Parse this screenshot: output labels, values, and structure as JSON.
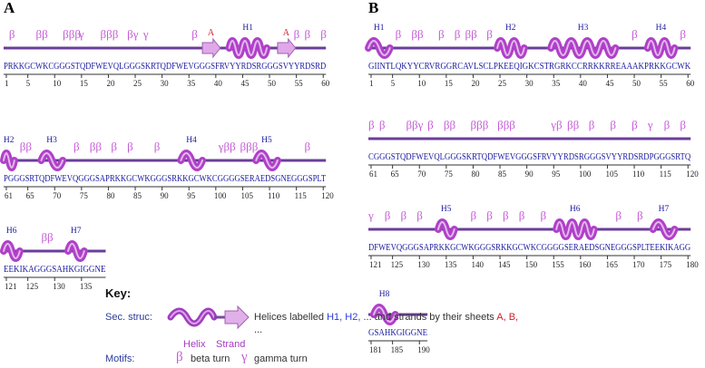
{
  "panels": [
    {
      "label": "A",
      "rows": [
        {
          "seq": "PRKKGCWKCGGGSTQDFWEVQLGGGSKRTQDFWEVGGGSFRVYYRDSRGGGSVYYRDSRD",
          "start": 1,
          "ticks": [
            "1",
            "5",
            "10",
            "15",
            "20",
            "25",
            "30",
            "35",
            "40",
            "45",
            "50",
            "55",
            "60"
          ],
          "helices": [
            {
              "label": "H1",
              "from": 43,
              "to": 49
            }
          ],
          "strands": [
            {
              "label": "A",
              "from": 38,
              "to": 40
            },
            {
              "label": "A",
              "from": 52,
              "to": 54
            }
          ],
          "motifs": [
            {
              "t": "β",
              "pos": 2
            },
            {
              "t": "ββ",
              "pos": 7
            },
            {
              "t": "βββ",
              "pos": 12
            },
            {
              "t": "γ",
              "pos": 15
            },
            {
              "t": "βββ",
              "pos": 19
            },
            {
              "t": "βγ",
              "pos": 24
            },
            {
              "t": "γ",
              "pos": 27
            },
            {
              "t": "β",
              "pos": 36
            },
            {
              "t": "β",
              "pos": 55
            },
            {
              "t": "β",
              "pos": 57
            },
            {
              "t": "β",
              "pos": 60
            }
          ]
        },
        {
          "seq": "PGGGSRTQDFWEVQGGGSAPRKKGCWKGGGSRKKGCWKCGGGGSERAEDSGNEGGGSPLT",
          "start": 61,
          "ticks": [
            "61",
            "65",
            "70",
            "75",
            "80",
            "85",
            "90",
            "95",
            "100",
            "105",
            "110",
            "115",
            "120"
          ],
          "helices": [
            {
              "label": "H2",
              "from": 61,
              "to": 62
            },
            {
              "label": "H3",
              "from": 68,
              "to": 71
            },
            {
              "label": "H4",
              "from": 94,
              "to": 97
            },
            {
              "label": "H5",
              "from": 108,
              "to": 111
            }
          ],
          "strands": [],
          "motifs": [
            {
              "t": "ββ",
              "pos": 64
            },
            {
              "t": "β",
              "pos": 74
            },
            {
              "t": "ββ",
              "pos": 77
            },
            {
              "t": "β",
              "pos": 81
            },
            {
              "t": "β",
              "pos": 84
            },
            {
              "t": "β",
              "pos": 89
            },
            {
              "t": "γββ",
              "pos": 101
            },
            {
              "t": "βββ",
              "pos": 105
            },
            {
              "t": "β",
              "pos": 117
            }
          ]
        },
        {
          "seq": "EEKIKAGGGSAHKGIGGNE",
          "start": 121,
          "ticks": [
            "121",
            "125",
            "130",
            "135"
          ],
          "helices": [
            {
              "label": "H6",
              "from": 121,
              "to": 123
            },
            {
              "label": "H7",
              "from": 133,
              "to": 135
            }
          ],
          "strands": [],
          "motifs": [
            {
              "t": "ββ",
              "pos": 128
            }
          ]
        }
      ]
    },
    {
      "label": "B",
      "rows": [
        {
          "seq": "GIINTLQKYYCRVRGGRCAVLSCLPKEEQIGKCSTRGRKCCRRKKRREAAAKPRKKGCWK",
          "start": 1,
          "ticks": [
            "1",
            "5",
            "10",
            "15",
            "20",
            "25",
            "30",
            "35",
            "40",
            "45",
            "50",
            "55",
            "60"
          ],
          "helices": [
            {
              "label": "H1",
              "from": 1,
              "to": 4
            },
            {
              "label": "H2",
              "from": 25,
              "to": 29
            },
            {
              "label": "H3",
              "from": 35,
              "to": 46
            },
            {
              "label": "H4",
              "from": 53,
              "to": 57
            }
          ],
          "strands": [],
          "motifs": [
            {
              "t": "β",
              "pos": 6
            },
            {
              "t": "ββ",
              "pos": 9
            },
            {
              "t": "β",
              "pos": 14
            },
            {
              "t": "β",
              "pos": 17
            },
            {
              "t": "ββ",
              "pos": 19
            },
            {
              "t": "β",
              "pos": 23
            },
            {
              "t": "β",
              "pos": 50
            },
            {
              "t": "β",
              "pos": 59
            }
          ]
        },
        {
          "seq": "CGGGSTQDFWEVQLGGGSKRTQDFWEVGGGSFRVYYRDSRGGGSVYYRDSRDPGGGSRTQ",
          "start": 61,
          "ticks": [
            "61",
            "65",
            "70",
            "75",
            "80",
            "85",
            "90",
            "95",
            "100",
            "105",
            "110",
            "115",
            "120"
          ],
          "helices": [],
          "strands": [],
          "motifs": [
            {
              "t": "β",
              "pos": 61
            },
            {
              "t": "β",
              "pos": 63
            },
            {
              "t": "ββγ",
              "pos": 68
            },
            {
              "t": "β",
              "pos": 72
            },
            {
              "t": "ββ",
              "pos": 75
            },
            {
              "t": "βββ",
              "pos": 80
            },
            {
              "t": "βββ",
              "pos": 85
            },
            {
              "t": "γβ",
              "pos": 95
            },
            {
              "t": "ββ",
              "pos": 98
            },
            {
              "t": "β",
              "pos": 102
            },
            {
              "t": "β",
              "pos": 106
            },
            {
              "t": "β",
              "pos": 110
            },
            {
              "t": "γ",
              "pos": 113
            },
            {
              "t": "β",
              "pos": 116
            },
            {
              "t": "β",
              "pos": 119
            }
          ]
        },
        {
          "seq": "DFWEVQGGGSAPRKKGCWKGGGSRKKGCWKCGGGGSERAEDSGNEGGGSPLTEEKIKAGG",
          "start": 121,
          "ticks": [
            "121",
            "125",
            "130",
            "135",
            "140",
            "145",
            "150",
            "155",
            "160",
            "165",
            "170",
            "175",
            "180"
          ],
          "helices": [
            {
              "label": "H5",
              "from": 134,
              "to": 136
            },
            {
              "label": "H6",
              "from": 156,
              "to": 162
            },
            {
              "label": "H7",
              "from": 174,
              "to": 177
            }
          ],
          "strands": [],
          "motifs": [
            {
              "t": "γ",
              "pos": 121
            },
            {
              "t": "β",
              "pos": 124
            },
            {
              "t": "β",
              "pos": 127
            },
            {
              "t": "β",
              "pos": 130
            },
            {
              "t": "β",
              "pos": 140
            },
            {
              "t": "β",
              "pos": 143
            },
            {
              "t": "β",
              "pos": 146
            },
            {
              "t": "β",
              "pos": 149
            },
            {
              "t": "β",
              "pos": 153
            },
            {
              "t": "β",
              "pos": 167
            },
            {
              "t": "β",
              "pos": 171
            }
          ]
        },
        {
          "seq": "GSAHKGIGGNE",
          "start": 181,
          "ticks": [
            "181",
            "185",
            "190"
          ],
          "helices": [
            {
              "label": "H8",
              "from": 182,
              "to": 185
            }
          ],
          "strands": [],
          "motifs": []
        }
      ]
    }
  ],
  "key": {
    "title": "Key:",
    "sec_struc_label": "Sec. struc:",
    "desc_prefix": "Helices labelled",
    "h1": "H1,",
    "h2": "H2,",
    "desc_mid": "... and strands by their sheets",
    "sa": "A,",
    "sb": "B,",
    "desc_more": "...",
    "helix_label": "Helix",
    "strand_label": "Strand",
    "motifs_label": "Motifs:",
    "beta_glyph": "β",
    "beta_label": "beta turn",
    "gamma_glyph": "γ",
    "gamma_label": "gamma turn"
  },
  "colors": {
    "helix": "#b040c8",
    "strand": "#e0a8e8",
    "sequence": "#1a1aa0",
    "motif": "#c55bd6",
    "sheet": "#d0202a",
    "track": "#6a3d9a"
  }
}
